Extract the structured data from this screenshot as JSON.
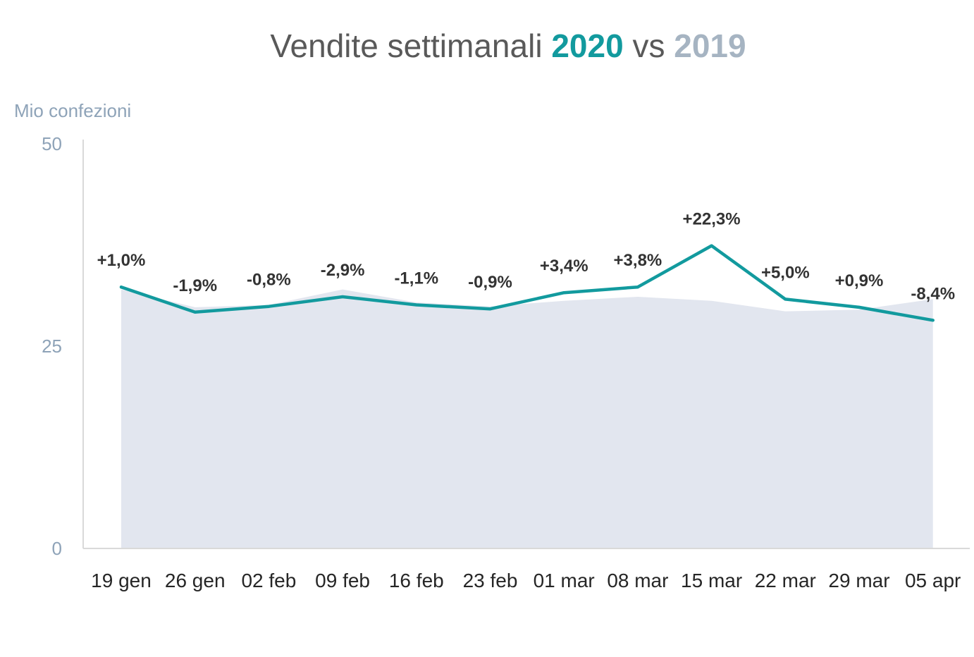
{
  "title": {
    "prefix": "Vendite settimanali",
    "year_current": "2020",
    "mid": "vs",
    "year_previous": "2019"
  },
  "colors": {
    "current": "#129a9e",
    "previous_fill": "#e2e6ef",
    "axis_text": "#8ea3b8",
    "labels": "#333333"
  },
  "chart_data": {
    "type": "line",
    "ylabel": "Mio confezioni",
    "ylim": [
      0,
      50
    ],
    "yticks": [
      0,
      25,
      50
    ],
    "categories": [
      "19 gen",
      "26 gen",
      "02 feb",
      "09 feb",
      "16 feb",
      "23 feb",
      "01 mar",
      "08 mar",
      "15 mar",
      "22 mar",
      "29 mar",
      "05 apr"
    ],
    "series": [
      {
        "name": "2020",
        "type": "line",
        "values": [
          32.3,
          29.2,
          29.9,
          31.1,
          30.1,
          29.6,
          31.6,
          32.3,
          37.4,
          30.8,
          29.8,
          28.2
        ]
      },
      {
        "name": "2019",
        "type": "area",
        "values": [
          32.0,
          29.8,
          30.1,
          32.0,
          30.4,
          29.9,
          30.6,
          31.1,
          30.6,
          29.3,
          29.5,
          30.8
        ]
      }
    ],
    "annotations": [
      "+1,0%",
      "-1,9%",
      "-0,8%",
      "-2,9%",
      "-1,1%",
      "-0,9%",
      "+3,4%",
      "+3,8%",
      "+22,3%",
      "+5,0%",
      "+0,9%",
      "-8,4%"
    ]
  }
}
